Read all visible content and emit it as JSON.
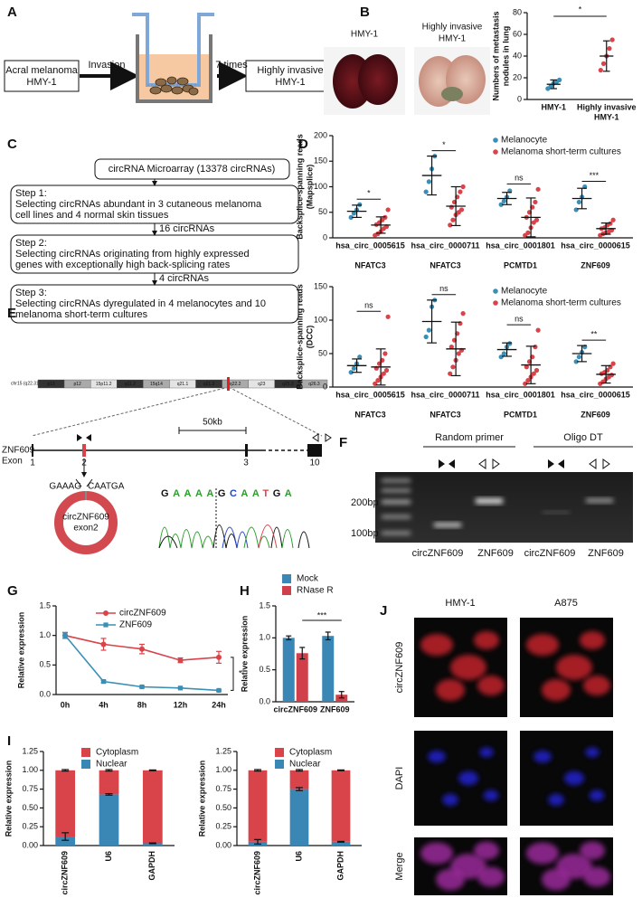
{
  "panel_letters": [
    "A",
    "B",
    "C",
    "D",
    "E",
    "F",
    "G",
    "H",
    "I",
    "J"
  ],
  "panel_a": {
    "left_box": [
      "Acral melanoma",
      "HMY-1"
    ],
    "arrow_1": "Invasion",
    "arrow_2": "7 times",
    "right_box": [
      "Highly invasive",
      "HMY-1"
    ]
  },
  "panel_b": {
    "photo_labels": [
      [
        "HMY-1"
      ],
      [
        "Highly invasive",
        "HMY-1"
      ]
    ]
  },
  "panel_c": {
    "top_box": "circRNA Microarray (13378 circRNAs)",
    "steps": [
      [
        "Step 1:",
        "Selecting circRNAs abundant in 3 cutaneous melanoma",
        "cell lines and 4 normal skin tissues"
      ],
      [
        "Step 2:",
        "Selecting circRNAs originating from highly expressed",
        "genes with exceptionally high back-splicing rates"
      ],
      [
        "Step 3:",
        "Selecting circRNAs dyregulated in 4 melanocytes and 10",
        "melanoma short-term cultures"
      ]
    ],
    "arrows": [
      "16 circRNAs",
      "4 circRNAs"
    ]
  },
  "panel_e": {
    "chromosome": "chr15 (q22.31)",
    "bands": [
      "p13",
      "p12",
      "15p11.2",
      "q11.2",
      "15q14",
      "q21.1",
      "q21.3",
      "q22.2",
      "q23",
      "q25.3",
      "q26.3"
    ],
    "scale": "50kb",
    "gene": "ZNF609",
    "exon_label": "Exon",
    "exons": [
      "1",
      "2",
      "3",
      "10"
    ],
    "junction": [
      "GAAAG",
      "CAATGA"
    ],
    "circle_label": [
      "circZNF609",
      "exon2"
    ],
    "sequence": "GAAAAGCAATGA"
  },
  "panel_f": {
    "primers": [
      "Random primer",
      "Oligo DT"
    ],
    "markers": [
      "200bp",
      "100bp"
    ],
    "lanes": [
      "circZNF609",
      "ZNF609",
      "circZNF609",
      "ZNF609"
    ]
  },
  "panel_j": {
    "columns": [
      "HMY-1",
      "A875"
    ],
    "rows": [
      "circZNF609",
      "DAPI",
      "Merge"
    ]
  },
  "chart_data": [
    {
      "type": "dot",
      "ylabel": [
        "Numbers of metastasis",
        "nodules in lung"
      ],
      "categories": [
        [
          "HMY-1"
        ],
        [
          "Highly invasive",
          "HMY-1"
        ]
      ],
      "series": [
        {
          "colors": [
            "#3a8fb7",
            "#d9434a"
          ],
          "values": [
            [
              10,
              12,
              15,
              16,
              18
            ],
            [
              27,
              33,
              40,
              47,
              55
            ]
          ],
          "means": [
            14,
            40
          ],
          "sds": [
            4,
            14
          ]
        }
      ],
      "ylim": [
        0,
        80
      ],
      "yticks": [
        0,
        20,
        40,
        60,
        80
      ],
      "significance": "*"
    },
    {
      "type": "dot",
      "ylabel": [
        "Backsplice-spanning reads",
        "(Mapsplice)"
      ],
      "categories": [
        "hsa_circ_0005615",
        "hsa_circ_0000711",
        "hsa_circ_0001801",
        "hsa_circ_0000615"
      ],
      "genes": [
        "NFATC3",
        "NFATC3",
        "PCMTD1",
        "ZNF609"
      ],
      "series": [
        {
          "name": "Melanocyte",
          "color": "#3a8fb7",
          "values": [
            [
              40,
              48,
              55,
              65
            ],
            [
              90,
              110,
              135,
              160
            ],
            [
              65,
              72,
              80,
              92
            ],
            [
              55,
              70,
              80,
              100
            ]
          ],
          "means": [
            52,
            122,
            77,
            77
          ],
          "sds": [
            12,
            38,
            12,
            20
          ]
        },
        {
          "name": "Melanoma short-term cultures",
          "color": "#d9434a",
          "values": [
            [
              5,
              8,
              12,
              18,
              22,
              26,
              30,
              35,
              40,
              55
            ],
            [
              25,
              35,
              45,
              50,
              55,
              60,
              70,
              80,
              90,
              100
            ],
            [
              5,
              10,
              20,
              30,
              35,
              40,
              50,
              60,
              70,
              95
            ],
            [
              5,
              8,
              10,
              12,
              15,
              18,
              20,
              25,
              28,
              35
            ]
          ],
          "means": [
            25,
            62,
            40,
            18
          ],
          "sds": [
            16,
            38,
            38,
            11
          ]
        }
      ],
      "ylim": [
        0,
        200
      ],
      "yticks": [
        0,
        50,
        100,
        150,
        200
      ],
      "significance": [
        "*",
        "*",
        "ns",
        "***"
      ]
    },
    {
      "type": "dot",
      "ylabel": [
        "Backsplice-spanning reads",
        "(DCC)"
      ],
      "categories": [
        "hsa_circ_0005615",
        "hsa_circ_0000711",
        "hsa_circ_0001801",
        "hsa_circ_0000615"
      ],
      "genes": [
        "NFATC3",
        "NFATC3",
        "PCMTD1",
        "ZNF609"
      ],
      "series": [
        {
          "name": "Melanocyte",
          "color": "#3a8fb7",
          "values": [
            [
              22,
              28,
              35,
              45
            ],
            [
              75,
              85,
              120,
              130
            ],
            [
              45,
              50,
              60,
              65
            ],
            [
              38,
              45,
              52,
              60
            ]
          ],
          "means": [
            32,
            98,
            56,
            50
          ],
          "sds": [
            10,
            32,
            10,
            12
          ]
        },
        {
          "name": "Melanoma short-term cultures",
          "color": "#d9434a",
          "values": [
            [
              5,
              10,
              15,
              20,
              25,
              28,
              35,
              40,
              50,
              105
            ],
            [
              20,
              30,
              40,
              50,
              55,
              60,
              70,
              80,
              95,
              110
            ],
            [
              5,
              10,
              15,
              20,
              25,
              30,
              38,
              45,
              60,
              85
            ],
            [
              5,
              8,
              12,
              15,
              18,
              20,
              22,
              25,
              30,
              35
            ]
          ],
          "means": [
            30,
            57,
            33,
            19
          ],
          "sds": [
            27,
            40,
            28,
            13
          ]
        }
      ],
      "ylim": [
        0,
        150
      ],
      "yticks": [
        0,
        50,
        100,
        150
      ],
      "significance": [
        "ns",
        "ns",
        "ns",
        "**"
      ]
    },
    {
      "type": "line",
      "ylabel": "Relative expression",
      "categories": [
        "0h",
        "4h",
        "8h",
        "12h",
        "24h"
      ],
      "series": [
        {
          "name": "circZNF609",
          "color": "#d9434a",
          "values": [
            1,
            0.85,
            0.77,
            0.58,
            0.63
          ],
          "errors": [
            0.05,
            0.1,
            0.08,
            0.04,
            0.1
          ]
        },
        {
          "name": "ZNF609",
          "color": "#3a8fb7",
          "values": [
            1,
            0.22,
            0.13,
            0.11,
            0.07
          ],
          "errors": [
            0.05,
            0.02,
            0.01,
            0.01,
            0.01
          ]
        }
      ],
      "ylim": [
        0,
        1.5
      ],
      "yticks": [
        {
          "value": 0,
          "label": "0.0"
        },
        0.5,
        {
          "value": 1,
          "label": "1.0"
        },
        1.5
      ],
      "significance": "*"
    },
    {
      "type": "bar",
      "ylabel": "Relative expression",
      "categories": [
        "circZNF609",
        "ZNF609"
      ],
      "series": [
        {
          "name": "Mock",
          "color": "#3a87b5",
          "values": [
            1,
            1.03
          ],
          "errors": [
            0.03,
            0.06
          ]
        },
        {
          "name": "RNase R",
          "color": "#d0404a",
          "values": [
            0.76,
            0.11
          ],
          "errors": [
            0.09,
            0.05
          ]
        }
      ],
      "ylim": [
        0,
        1.5
      ],
      "yticks": [
        {
          "value": 0,
          "label": "0.0"
        },
        0.5,
        {
          "value": 1,
          "label": "1.0"
        },
        1.5
      ],
      "significance": "***"
    },
    {
      "type": "stacked_bar",
      "ylabel": "Relative expression",
      "categories": [
        "circZNF609",
        "U6",
        "GAPDH"
      ],
      "series": [
        {
          "name": "Nuclear",
          "color": "#3a87b5",
          "values": [
            0.12,
            0.68,
            0.03
          ],
          "errors": [
            0.05,
            0.01,
            0.005
          ]
        },
        {
          "name": "Cytoplasm",
          "color": "#d9434a",
          "values": [
            0.88,
            0.32,
            0.97
          ],
          "errors": [
            0.01,
            0.01,
            0.005
          ]
        }
      ],
      "ylim": [
        0,
        1.25
      ],
      "yticks": [
        {
          "value": 0,
          "label": "0.00"
        },
        0.25,
        {
          "value": 0.5,
          "label": "0.50"
        },
        0.75,
        {
          "value": 1,
          "label": "1.00"
        },
        1.25
      ]
    },
    {
      "type": "stacked_bar",
      "ylabel": "Relative expression",
      "categories": [
        "circZNF609",
        "U6",
        "GAPDH"
      ],
      "series": [
        {
          "name": "Nuclear",
          "color": "#3a87b5",
          "values": [
            0.05,
            0.75,
            0.05
          ],
          "errors": [
            0.03,
            0.02,
            0.005
          ]
        },
        {
          "name": "Cytoplasm",
          "color": "#d9434a",
          "values": [
            0.95,
            0.25,
            0.95
          ],
          "errors": [
            0.01,
            0.01,
            0.005
          ]
        }
      ],
      "ylim": [
        0,
        1.25
      ],
      "yticks": [
        {
          "value": 0,
          "label": "0.00"
        },
        0.25,
        {
          "value": 0.5,
          "label": "0.50"
        },
        0.75,
        {
          "value": 1,
          "label": "1.00"
        },
        1.25
      ]
    }
  ]
}
